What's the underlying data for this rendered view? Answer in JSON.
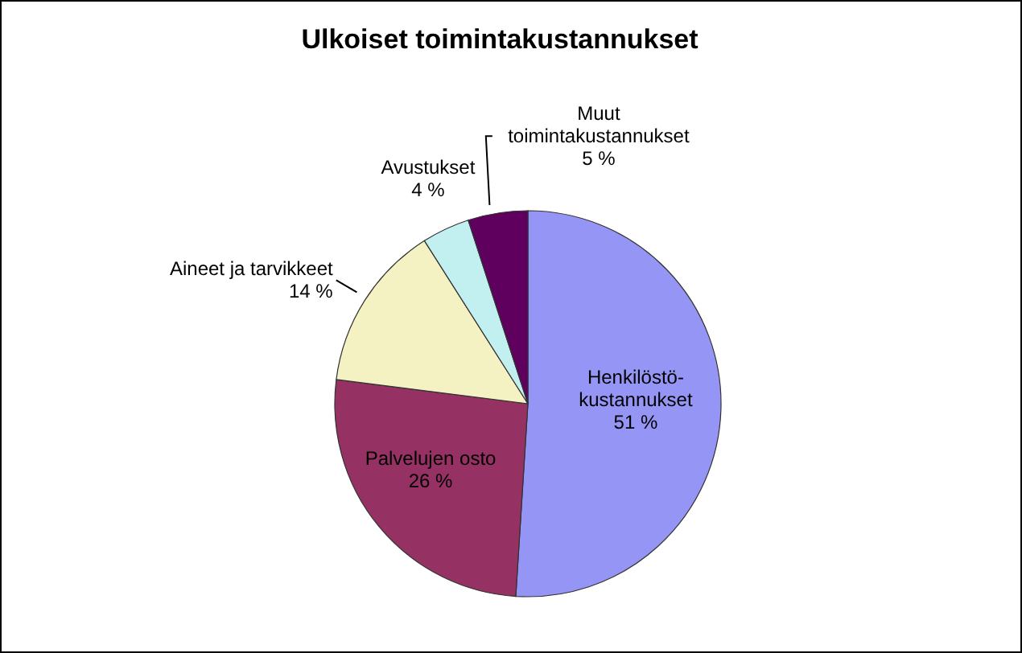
{
  "chart_data": {
    "type": "pie",
    "title": "Ulkoiset toimintakustannukset",
    "categories": [
      "Henkilöstö-kustannukset",
      "Palvelujen osto",
      "Aineet ja tarvikkeet",
      "Avustukset",
      "Muut toimintakustannukset"
    ],
    "values": [
      51,
      26,
      14,
      4,
      5
    ],
    "value_labels": [
      "51 %",
      "26 %",
      "14 %",
      "4 %",
      "5 %"
    ],
    "colors": [
      "#9595f5",
      "#953163",
      "#f4f2c2",
      "#c2f0f0",
      "#5f005f"
    ]
  }
}
